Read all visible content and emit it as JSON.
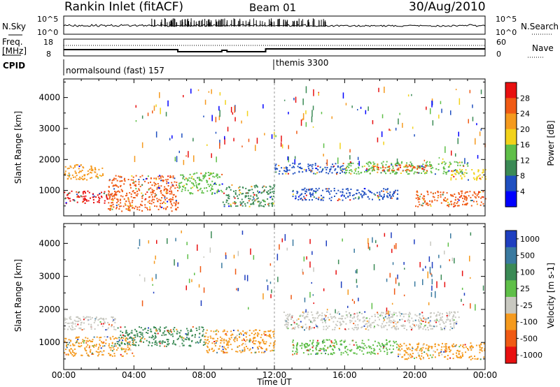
{
  "header": {
    "station": "Rankin Inlet (fitACF)",
    "beam": "Beam 01",
    "date": "30/Aug/2010"
  },
  "strips": {
    "nsky_label": "N.Sky",
    "nsky_ticks": [
      "10^5",
      "10^0"
    ],
    "nsearch_label": "N.Search",
    "nsearch_ticks": [
      "10^5",
      "10^0"
    ],
    "freq_label_top": "Freq.",
    "freq_label_bottom": "[MHz]",
    "freq_ticks": [
      "18",
      "8"
    ],
    "nave_label": "Nave",
    "nave_ticks": [
      "60",
      "0"
    ],
    "cpid_label": "CPID",
    "cpid_segments": [
      {
        "label": "normalsound (fast) 157",
        "start_hour": 0
      },
      {
        "label": "themis 3300",
        "start_hour": 12
      }
    ]
  },
  "chart_data": [
    {
      "type": "heatmap",
      "name": "power-panel",
      "ylabel": "Slant Range [km]",
      "yticks": [
        1000,
        2000,
        3000,
        4000
      ],
      "ylim": [
        180,
        4600
      ],
      "xlim": [
        0,
        24
      ],
      "colorbar": {
        "label": "Power [dB]",
        "ticks": [
          "4",
          "8",
          "12",
          "16",
          "20",
          "24",
          "28"
        ],
        "colors": [
          "#0000ff",
          "#1f4fc0",
          "#3b8a55",
          "#5fbf48",
          "#f2d21a",
          "#f59a1e",
          "#f05a14",
          "#e81010"
        ]
      },
      "bands": [
        {
          "x0": 0,
          "x1": 2.2,
          "y0": 1350,
          "y1": 1850,
          "color": "#f59a1e"
        },
        {
          "x0": 0,
          "x1": 2.5,
          "y0": 600,
          "y1": 1000,
          "color": "#e81010"
        },
        {
          "x0": 2.5,
          "x1": 6.5,
          "y0": 350,
          "y1": 1500,
          "color": "#f05a14"
        },
        {
          "x0": 6.5,
          "x1": 9,
          "y0": 900,
          "y1": 1600,
          "color": "#5fbf48"
        },
        {
          "x0": 9,
          "x1": 12,
          "y0": 500,
          "y1": 1200,
          "color": "#3b8a55"
        },
        {
          "x0": 12,
          "x1": 16,
          "y0": 1550,
          "y1": 1900,
          "color": "#1f4fc0"
        },
        {
          "x0": 13,
          "x1": 19,
          "y0": 700,
          "y1": 1100,
          "color": "#1f4fc0"
        },
        {
          "x0": 16,
          "x1": 23,
          "y0": 1550,
          "y1": 1950,
          "color": "#5fbf48"
        },
        {
          "x0": 17.5,
          "x1": 21,
          "y0": 1650,
          "y1": 1850,
          "color": "#f05a14"
        },
        {
          "x0": 20,
          "x1": 24,
          "y0": 500,
          "y1": 1000,
          "color": "#f05a14"
        },
        {
          "x0": 22,
          "x1": 24,
          "y0": 1350,
          "y1": 1700,
          "color": "#f2d21a"
        }
      ]
    },
    {
      "type": "heatmap",
      "name": "velocity-panel",
      "xlabel": "Time UT",
      "xticks": [
        "00:00",
        "04:00",
        "08:00",
        "12:00",
        "16:00",
        "20:00",
        "00:00"
      ],
      "ylabel": "Slant Range [km]",
      "yticks": [
        1000,
        2000,
        3000,
        4000
      ],
      "ylim": [
        180,
        4600
      ],
      "xlim": [
        0,
        24
      ],
      "colorbar": {
        "label": "Velocity [m s-1]",
        "ticks": [
          "1000",
          "500",
          "100",
          "25",
          "-25",
          "-100",
          "-500",
          "-1000"
        ],
        "colors": [
          "#1f3fc0",
          "#3a7aa0",
          "#3b8a55",
          "#5fbf48",
          "#c8c8c0",
          "#f59a1e",
          "#f05a14",
          "#e81010"
        ]
      },
      "bands": [
        {
          "x0": 0,
          "x1": 3,
          "y0": 1400,
          "y1": 1800,
          "color": "#c8c8c0"
        },
        {
          "x0": 0,
          "x1": 4,
          "y0": 600,
          "y1": 1200,
          "color": "#f59a1e"
        },
        {
          "x0": 3,
          "x1": 8,
          "y0": 900,
          "y1": 1500,
          "color": "#3b8a55"
        },
        {
          "x0": 8,
          "x1": 12,
          "y0": 700,
          "y1": 1400,
          "color": "#f59a1e"
        },
        {
          "x0": 12.5,
          "x1": 22.5,
          "y0": 1400,
          "y1": 1950,
          "color": "#c8c8c0"
        },
        {
          "x0": 13,
          "x1": 19,
          "y0": 650,
          "y1": 1100,
          "color": "#5fbf48"
        },
        {
          "x0": 19,
          "x1": 24,
          "y0": 500,
          "y1": 1000,
          "color": "#f59a1e"
        }
      ]
    }
  ]
}
